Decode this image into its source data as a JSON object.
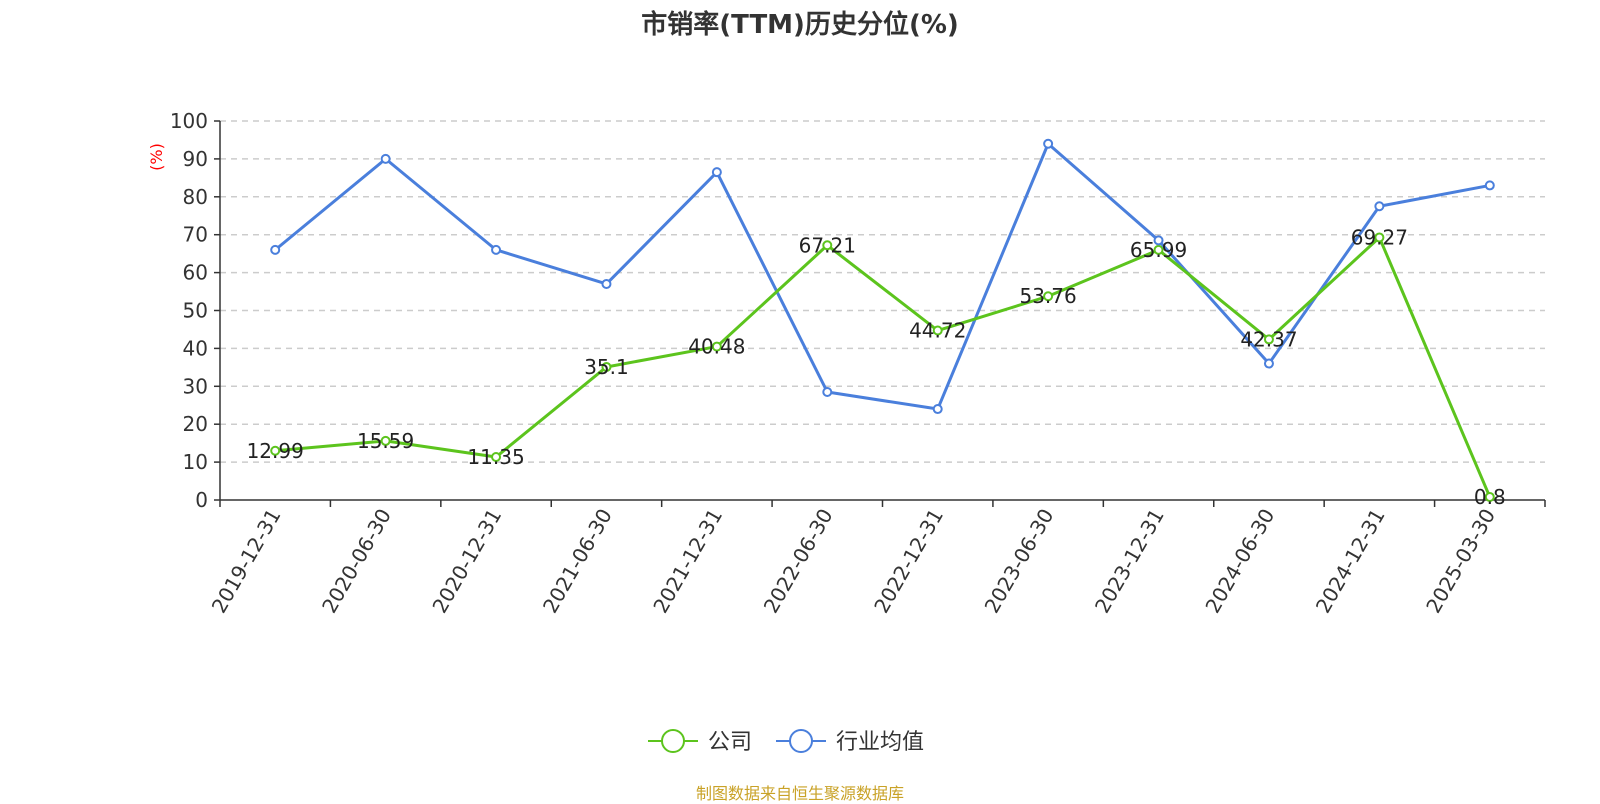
{
  "title": "市销率(TTM)历史分位(%)",
  "footer": "制图数据来自恒生聚源数据库",
  "chart_data": {
    "type": "line",
    "title": "市销率(TTM)历史分位(%)",
    "ylabel": "(%)",
    "ylim": [
      0,
      100
    ],
    "yticks": [
      0,
      10,
      20,
      30,
      40,
      50,
      60,
      70,
      80,
      90,
      100
    ],
    "grid": true,
    "legend_position": "bottom",
    "categories": [
      "2019-12-31",
      "2020-06-30",
      "2020-12-31",
      "2021-06-30",
      "2021-12-31",
      "2022-06-30",
      "2022-12-31",
      "2023-06-30",
      "2023-12-31",
      "2024-06-30",
      "2024-12-31",
      "2025-03-30"
    ],
    "series": [
      {
        "name": "公司",
        "color": "#5cc41d",
        "values": [
          12.99,
          15.59,
          11.35,
          35.1,
          40.48,
          67.21,
          44.72,
          53.76,
          65.99,
          42.37,
          69.27,
          0.8
        ],
        "labels": [
          "12.99",
          "15.59",
          "11.35",
          "35.1",
          "40.48",
          "67.21",
          "44.72",
          "53.76",
          "65.99",
          "42.37",
          "69.27",
          "0.8"
        ],
        "show_labels": true
      },
      {
        "name": "行业均值",
        "color": "#4a7fdc",
        "values": [
          66,
          90,
          66,
          57,
          86.5,
          28.5,
          24,
          94,
          68.5,
          36,
          77.5,
          83
        ],
        "show_labels": false
      }
    ]
  }
}
